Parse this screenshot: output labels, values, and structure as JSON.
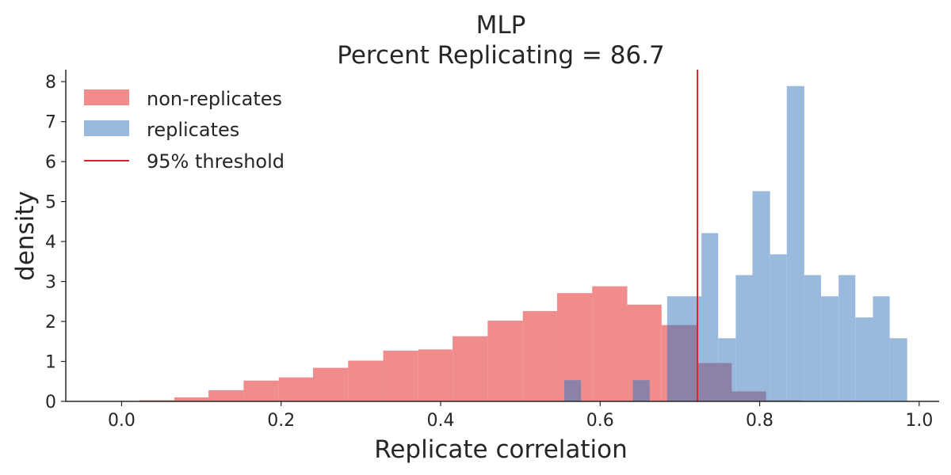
{
  "chart_data": {
    "type": "histogram",
    "title_line1": "MLP",
    "title_line2": "Percent Replicating = 86.7",
    "xlabel": "Replicate correlation",
    "ylabel": "density",
    "xlim": [
      -0.07,
      1.025
    ],
    "ylim": [
      0,
      8.3
    ],
    "xticks": [
      0.0,
      0.2,
      0.4,
      0.6,
      0.8,
      1.0
    ],
    "xtick_labels": [
      "0.0",
      "0.2",
      "0.4",
      "0.6",
      "0.8",
      "1.0"
    ],
    "yticks": [
      0,
      1,
      2,
      3,
      4,
      5,
      6,
      7,
      8
    ],
    "ytick_labels": [
      "0",
      "1",
      "2",
      "3",
      "4",
      "5",
      "6",
      "7",
      "8"
    ],
    "grid": false,
    "legend_position": "top-left",
    "threshold": {
      "name": "95% threshold",
      "x": 0.722,
      "color": "#d62728"
    },
    "series": [
      {
        "name": "non-replicates",
        "color": "#f08080",
        "opacity": 0.9,
        "bins": [
          {
            "x0": 0.022,
            "x1": 0.066,
            "density": 0.03
          },
          {
            "x0": 0.066,
            "x1": 0.109,
            "density": 0.1
          },
          {
            "x0": 0.109,
            "x1": 0.153,
            "density": 0.28
          },
          {
            "x0": 0.153,
            "x1": 0.197,
            "density": 0.52
          },
          {
            "x0": 0.197,
            "x1": 0.24,
            "density": 0.6
          },
          {
            "x0": 0.24,
            "x1": 0.284,
            "density": 0.84
          },
          {
            "x0": 0.284,
            "x1": 0.328,
            "density": 1.02
          },
          {
            "x0": 0.328,
            "x1": 0.372,
            "density": 1.27
          },
          {
            "x0": 0.372,
            "x1": 0.415,
            "density": 1.3
          },
          {
            "x0": 0.415,
            "x1": 0.459,
            "density": 1.63
          },
          {
            "x0": 0.459,
            "x1": 0.503,
            "density": 2.02
          },
          {
            "x0": 0.503,
            "x1": 0.546,
            "density": 2.26
          },
          {
            "x0": 0.546,
            "x1": 0.59,
            "density": 2.71
          },
          {
            "x0": 0.59,
            "x1": 0.634,
            "density": 2.88
          },
          {
            "x0": 0.634,
            "x1": 0.677,
            "density": 2.42
          },
          {
            "x0": 0.677,
            "x1": 0.721,
            "density": 1.91
          },
          {
            "x0": 0.721,
            "x1": 0.765,
            "density": 0.96
          },
          {
            "x0": 0.765,
            "x1": 0.808,
            "density": 0.25
          },
          {
            "x0": 0.808,
            "x1": 0.852,
            "density": 0.03
          }
        ]
      },
      {
        "name": "replicates",
        "color": "#8fb3d9",
        "opacity": 0.9,
        "bins": [
          {
            "x0": 0.555,
            "x1": 0.576,
            "density": 0.53
          },
          {
            "x0": 0.576,
            "x1": 0.598,
            "density": 0
          },
          {
            "x0": 0.598,
            "x1": 0.619,
            "density": 0
          },
          {
            "x0": 0.619,
            "x1": 0.641,
            "density": 0
          },
          {
            "x0": 0.641,
            "x1": 0.662,
            "density": 0.53
          },
          {
            "x0": 0.662,
            "x1": 0.684,
            "density": 0
          },
          {
            "x0": 0.684,
            "x1": 0.705,
            "density": 2.63
          },
          {
            "x0": 0.705,
            "x1": 0.727,
            "density": 2.63
          },
          {
            "x0": 0.727,
            "x1": 0.748,
            "density": 4.21
          },
          {
            "x0": 0.748,
            "x1": 0.77,
            "density": 1.58
          },
          {
            "x0": 0.77,
            "x1": 0.791,
            "density": 3.16
          },
          {
            "x0": 0.791,
            "x1": 0.813,
            "density": 5.26
          },
          {
            "x0": 0.813,
            "x1": 0.834,
            "density": 3.68
          },
          {
            "x0": 0.834,
            "x1": 0.856,
            "density": 7.89
          },
          {
            "x0": 0.856,
            "x1": 0.877,
            "density": 3.16
          },
          {
            "x0": 0.877,
            "x1": 0.899,
            "density": 2.63
          },
          {
            "x0": 0.899,
            "x1": 0.92,
            "density": 3.16
          },
          {
            "x0": 0.92,
            "x1": 0.942,
            "density": 2.1
          },
          {
            "x0": 0.942,
            "x1": 0.963,
            "density": 2.63
          },
          {
            "x0": 0.963,
            "x1": 0.985,
            "density": 1.58
          }
        ]
      }
    ]
  }
}
